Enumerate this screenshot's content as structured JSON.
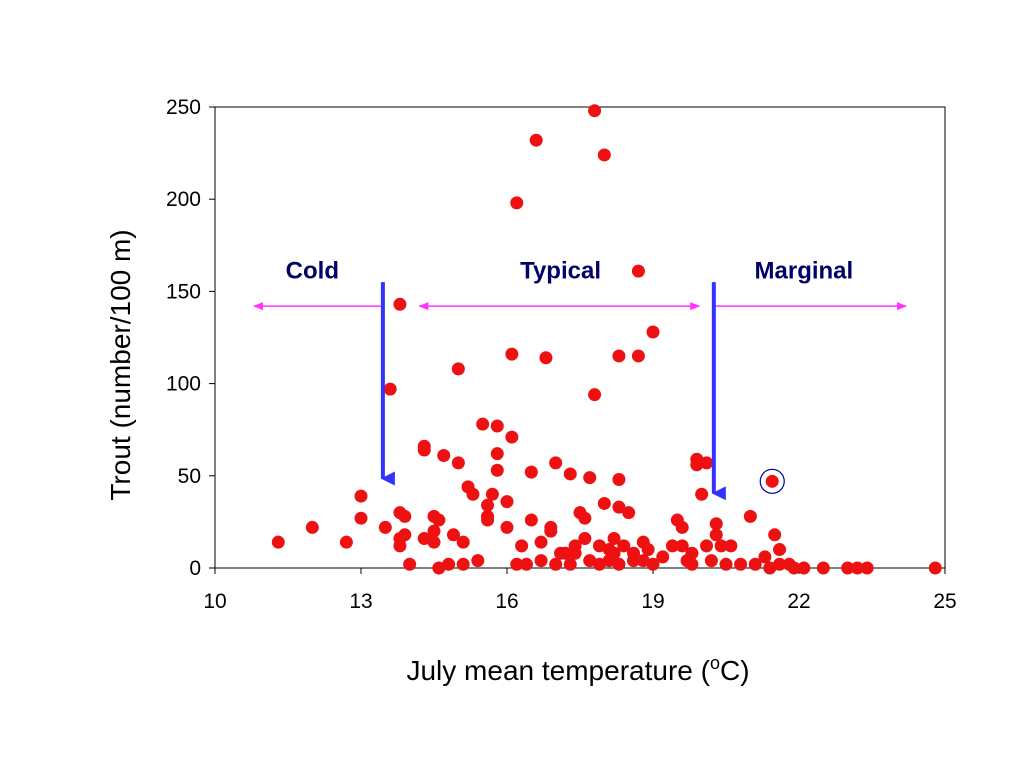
{
  "chart_data": {
    "type": "scatter",
    "xlabel": "July mean temperature (",
    "xlabel_sup": "o",
    "xlabel_end": "C)",
    "ylabel": "Trout (number/100 m)",
    "xlim": [
      10,
      25
    ],
    "ylim": [
      0,
      250
    ],
    "xticks": [
      10,
      13,
      16,
      19,
      22,
      25
    ],
    "yticks": [
      0,
      50,
      100,
      150,
      200,
      250
    ],
    "grid": false,
    "marker_color": "#ee1111",
    "highlight_ring_color": "#000099",
    "annotations": {
      "zones": [
        {
          "label": "Cold",
          "arrow_from": 13.45,
          "arrow_to": 10.8,
          "label_x": 12.0
        },
        {
          "label": "Typical",
          "arrow_from": 14.2,
          "arrow_to": 19.95,
          "label_x": 17.1,
          "bidirectional": true
        },
        {
          "label": "Marginal",
          "arrow_from": 20.25,
          "arrow_to": 24.2,
          "label_x": 22.1
        }
      ],
      "zone_arrow_y": 142,
      "zone_label_y": 157,
      "zone_arrow_color": "#ff33ff",
      "thresholds": [
        {
          "x": 13.45,
          "y_top": 155,
          "y_bottom": 42
        },
        {
          "x": 20.25,
          "y_top": 155,
          "y_bottom": 34
        }
      ],
      "threshold_color": "#3333ff",
      "highlight": {
        "x": 21.45,
        "y": 47
      }
    },
    "points": [
      [
        11.3,
        14
      ],
      [
        12.0,
        22
      ],
      [
        12.7,
        14
      ],
      [
        13.0,
        39
      ],
      [
        13.0,
        27
      ],
      [
        13.5,
        22
      ],
      [
        13.6,
        97
      ],
      [
        13.8,
        143
      ],
      [
        13.8,
        30
      ],
      [
        13.9,
        28
      ],
      [
        13.8,
        16
      ],
      [
        13.8,
        12
      ],
      [
        13.9,
        18
      ],
      [
        14.0,
        2
      ],
      [
        14.3,
        16
      ],
      [
        14.3,
        66
      ],
      [
        14.3,
        64
      ],
      [
        14.5,
        20
      ],
      [
        14.5,
        28
      ],
      [
        14.6,
        26
      ],
      [
        14.5,
        14
      ],
      [
        14.6,
        0
      ],
      [
        14.7,
        61
      ],
      [
        14.8,
        2
      ],
      [
        14.9,
        18
      ],
      [
        15.0,
        57
      ],
      [
        15.0,
        108
      ],
      [
        15.1,
        2
      ],
      [
        15.1,
        14
      ],
      [
        15.2,
        44
      ],
      [
        15.3,
        40
      ],
      [
        15.4,
        4
      ],
      [
        15.5,
        78
      ],
      [
        15.6,
        34
      ],
      [
        15.6,
        28
      ],
      [
        15.6,
        26
      ],
      [
        15.7,
        40
      ],
      [
        15.8,
        77
      ],
      [
        15.8,
        62
      ],
      [
        15.8,
        53
      ],
      [
        16.0,
        36
      ],
      [
        16.0,
        22
      ],
      [
        16.1,
        116
      ],
      [
        16.1,
        71
      ],
      [
        16.2,
        198
      ],
      [
        16.3,
        12
      ],
      [
        16.2,
        2
      ],
      [
        16.4,
        2
      ],
      [
        16.5,
        52
      ],
      [
        16.5,
        26
      ],
      [
        16.6,
        232
      ],
      [
        16.7,
        14
      ],
      [
        16.7,
        4
      ],
      [
        16.8,
        114
      ],
      [
        16.9,
        20
      ],
      [
        16.9,
        22
      ],
      [
        17.0,
        57
      ],
      [
        17.0,
        2
      ],
      [
        17.1,
        8
      ],
      [
        17.2,
        8
      ],
      [
        17.3,
        51
      ],
      [
        17.3,
        2
      ],
      [
        17.4,
        12
      ],
      [
        17.4,
        8
      ],
      [
        17.5,
        30
      ],
      [
        17.6,
        27
      ],
      [
        17.6,
        16
      ],
      [
        17.7,
        49
      ],
      [
        17.7,
        4
      ],
      [
        17.8,
        248
      ],
      [
        17.8,
        94
      ],
      [
        17.9,
        12
      ],
      [
        17.9,
        2
      ],
      [
        18.0,
        224
      ],
      [
        18.0,
        35
      ],
      [
        18.1,
        10
      ],
      [
        18.1,
        4
      ],
      [
        18.2,
        16
      ],
      [
        18.2,
        8
      ],
      [
        18.3,
        48
      ],
      [
        18.3,
        115
      ],
      [
        18.3,
        33
      ],
      [
        18.3,
        2
      ],
      [
        18.4,
        12
      ],
      [
        18.5,
        30
      ],
      [
        18.6,
        4
      ],
      [
        18.6,
        8
      ],
      [
        18.7,
        161
      ],
      [
        18.7,
        115
      ],
      [
        18.8,
        14
      ],
      [
        18.8,
        4
      ],
      [
        18.9,
        10
      ],
      [
        19.0,
        128
      ],
      [
        19.0,
        2
      ],
      [
        19.2,
        6
      ],
      [
        19.4,
        12
      ],
      [
        19.5,
        26
      ],
      [
        19.6,
        12
      ],
      [
        19.6,
        22
      ],
      [
        19.7,
        4
      ],
      [
        19.8,
        8
      ],
      [
        19.8,
        2
      ],
      [
        19.9,
        59
      ],
      [
        19.9,
        56
      ],
      [
        20.0,
        40
      ],
      [
        20.1,
        57
      ],
      [
        20.1,
        12
      ],
      [
        20.2,
        4
      ],
      [
        20.3,
        24
      ],
      [
        20.3,
        18
      ],
      [
        20.4,
        12
      ],
      [
        20.5,
        2
      ],
      [
        20.6,
        12
      ],
      [
        20.8,
        2
      ],
      [
        21.0,
        28
      ],
      [
        21.1,
        2
      ],
      [
        21.3,
        6
      ],
      [
        21.4,
        0
      ],
      [
        21.45,
        47
      ],
      [
        21.5,
        18
      ],
      [
        21.6,
        10
      ],
      [
        21.6,
        2
      ],
      [
        21.8,
        2
      ],
      [
        21.9,
        0
      ],
      [
        22.1,
        0
      ],
      [
        22.5,
        0
      ],
      [
        23.0,
        0
      ],
      [
        23.2,
        0
      ],
      [
        23.4,
        0
      ],
      [
        24.8,
        0
      ]
    ]
  }
}
